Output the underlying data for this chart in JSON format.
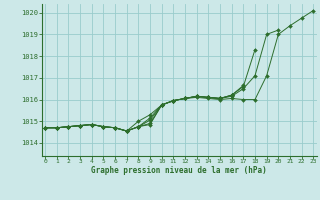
{
  "xlabel": "Graphe pression niveau de la mer (hPa)",
  "x_ticks": [
    0,
    1,
    2,
    3,
    4,
    5,
    6,
    7,
    8,
    9,
    10,
    11,
    12,
    13,
    14,
    15,
    16,
    17,
    18,
    19,
    20,
    21,
    22,
    23
  ],
  "y_ticks": [
    1014,
    1015,
    1016,
    1017,
    1018,
    1019,
    1020
  ],
  "ylim": [
    1013.4,
    1020.4
  ],
  "xlim": [
    -0.3,
    23.3
  ],
  "background_color": "#cce8e8",
  "grid_color": "#99cccc",
  "line_color": "#2d6e2d",
  "series": [
    [
      1014.7,
      1014.7,
      1014.75,
      1014.8,
      1014.85,
      1014.75,
      1014.7,
      1014.55,
      1014.75,
      1014.85,
      1015.75,
      1015.95,
      1016.05,
      1016.1,
      1016.05,
      1016.0,
      1016.05,
      1016.0,
      1016.0,
      1017.1,
      1019.0,
      1019.4,
      1019.75,
      1020.1
    ],
    [
      1014.7,
      1014.7,
      1014.75,
      1014.8,
      1014.85,
      1014.75,
      1014.7,
      1014.55,
      1014.75,
      1014.9,
      1015.75,
      1015.95,
      1016.05,
      1016.15,
      1016.1,
      1016.05,
      1016.15,
      1016.5,
      1017.1,
      1019.0,
      1019.2,
      null,
      null,
      null
    ],
    [
      1014.7,
      1014.7,
      1014.75,
      1014.8,
      1014.85,
      1014.75,
      1014.7,
      1014.55,
      1014.75,
      1015.05,
      1015.75,
      1015.95,
      1016.05,
      1016.15,
      1016.1,
      1016.05,
      1016.2,
      1016.6,
      1018.3,
      null,
      null,
      null,
      null,
      null
    ],
    [
      1014.7,
      1014.7,
      1014.75,
      1014.8,
      1014.85,
      1014.75,
      1014.7,
      1014.55,
      1014.75,
      1015.15,
      1015.75,
      1015.95,
      1016.05,
      1016.15,
      1016.1,
      1016.05,
      1016.2,
      1016.65,
      null,
      null,
      null,
      null,
      null,
      null
    ],
    [
      1014.7,
      1014.7,
      1014.75,
      1014.8,
      1014.85,
      1014.75,
      1014.7,
      1014.55,
      1015.0,
      1015.3,
      1015.75,
      1015.95,
      1016.05,
      1016.15,
      1016.1,
      1016.05,
      1016.2,
      null,
      null,
      null,
      null,
      null,
      null,
      null
    ]
  ]
}
